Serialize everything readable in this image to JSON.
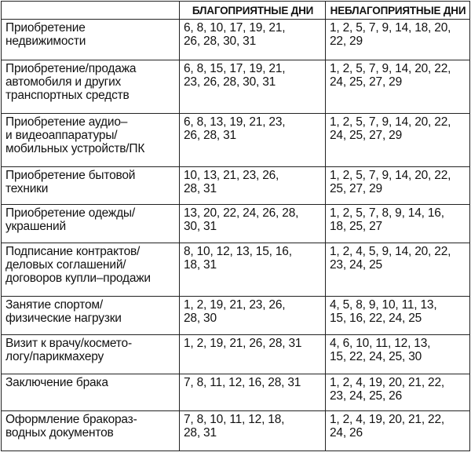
{
  "table": {
    "header": [
      "",
      "БЛАГОПРИЯТНЫЕ ДНИ",
      "НЕБЛАГОПРИЯТНЫЕ ДНИ"
    ],
    "rows": [
      [
        [
          "Приобретение",
          "недвижимости"
        ],
        [
          "6, 8, 10, 17, 19, 21,",
          "26, 28, 30, 31"
        ],
        [
          "1, 2, 5, 7, 9, 14, 18, 20,",
          "22, 29"
        ]
      ],
      [
        [
          "Приобретение/продажа",
          "автомобиля и других",
          "транспортных средств"
        ],
        [
          "6, 8, 15, 17, 19, 21,",
          "23, 26, 28, 30, 31"
        ],
        [
          "1, 2, 5, 7, 9, 14, 20, 22,",
          "24, 25, 27, 29"
        ]
      ],
      [
        [
          "Приобретение аудио–",
          "и видеоаппаратуры/",
          "мобильных устройств/ПК"
        ],
        [
          "6, 8, 13, 19, 21, 23,",
          "26, 28, 31"
        ],
        [
          "1, 2, 5, 7, 9, 14, 20, 22,",
          "24, 25, 27, 29"
        ]
      ],
      [
        [
          "Приобретение бытовой",
          "техники"
        ],
        [
          "10, 13, 21, 23, 26,",
          "28, 31"
        ],
        [
          "1, 2, 5, 7, 9, 14, 20, 22,",
          "25, 27, 29"
        ]
      ],
      [
        [
          "Приобретение одежды/",
          "украшений"
        ],
        [
          "13, 20, 22, 24, 26, 28,",
          "30, 31"
        ],
        [
          "1, 2, 5, 7, 8, 9, 14, 16,",
          "18, 25, 27"
        ]
      ],
      [
        [
          "Подписание контрактов/",
          "деловых соглашений/",
          "договоров купли–продажи"
        ],
        [
          "8, 10, 12, 13, 15, 16,",
          "18, 31"
        ],
        [
          "1, 2, 4, 5, 9, 14, 20, 22,",
          "23, 24, 25"
        ]
      ],
      [
        [
          "Занятие спортом/",
          "физические нагрузки"
        ],
        [
          "1, 2, 19, 21, 23, 26,",
          "28, 30"
        ],
        [
          "4, 5, 8, 9, 10, 11, 13,",
          "15, 16, 22, 24, 25"
        ]
      ],
      [
        [
          "Визит к врачу/космето-",
          "логу/парикмахеру"
        ],
        [
          "1, 2, 19, 21, 26, 28, 31"
        ],
        [
          "4, 6, 10, 11, 12, 13,",
          "15, 22, 24, 25, 30"
        ]
      ],
      [
        [
          "Заключение брака"
        ],
        [
          "7, 8, 11, 12, 16, 28, 31"
        ],
        [
          "1, 2, 4, 19, 20, 21, 22,",
          "23, 24, 25, 26"
        ]
      ],
      [
        [
          "Оформление бракораз-",
          "водных документов"
        ],
        [
          "7, 8, 10, 11, 12, 18,",
          "28, 31"
        ],
        [
          "1, 2, 4, 19, 20, 21, 22,",
          "24, 26"
        ]
      ]
    ]
  }
}
